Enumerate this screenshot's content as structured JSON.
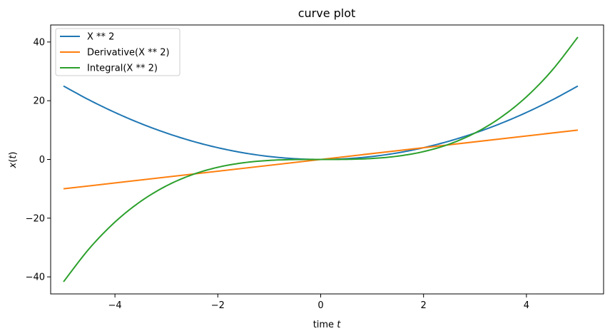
{
  "chart_data": {
    "type": "line",
    "title": "curve plot",
    "xlabel_prefix": "time ",
    "xlabel_var": "t",
    "ylabel_main": "x(",
    "ylabel_var": "t",
    "ylabel_close": ")",
    "xlim": [
      -5.25,
      5.5
    ],
    "ylim": [
      -45.8,
      45.8
    ],
    "x_ticks": [
      -4,
      -2,
      0,
      2,
      4
    ],
    "x_tick_labels": [
      "−4",
      "−2",
      "0",
      "2",
      "4"
    ],
    "y_ticks": [
      -40,
      -20,
      0,
      20,
      40
    ],
    "y_tick_labels": [
      "−40",
      "−20",
      "0",
      "20",
      "40"
    ],
    "grid": false,
    "legend_position": "top-left",
    "series": [
      {
        "name": "X ** 2",
        "color": "#1f77b4",
        "x": [
          -5,
          -4.5,
          -4,
          -3.5,
          -3,
          -2.5,
          -2,
          -1.5,
          -1,
          -0.5,
          0,
          0.5,
          1,
          1.5,
          2,
          2.5,
          3,
          3.5,
          4,
          4.5,
          5
        ],
        "y": [
          25,
          20.25,
          16,
          12.25,
          9,
          6.25,
          4,
          2.25,
          1,
          0.25,
          0,
          0.25,
          1,
          2.25,
          4,
          6.25,
          9,
          12.25,
          16,
          20.25,
          25
        ]
      },
      {
        "name": "Derivative(X ** 2)",
        "color": "#ff7f0e",
        "x": [
          -5,
          5
        ],
        "y": [
          -10,
          10
        ]
      },
      {
        "name": "Integral(X ** 2)",
        "color": "#2ca02c",
        "x": [
          -5,
          -4.5,
          -4,
          -3.5,
          -3,
          -2.5,
          -2,
          -1.5,
          -1,
          -0.5,
          0,
          0.5,
          1,
          1.5,
          2,
          2.5,
          3,
          3.5,
          4,
          4.5,
          5
        ],
        "y": [
          -41.67,
          -30.38,
          -21.33,
          -14.29,
          -9,
          -5.21,
          -2.67,
          -1.13,
          -0.33,
          -0.04,
          0,
          0.04,
          0.33,
          1.13,
          2.67,
          5.21,
          9,
          14.29,
          21.33,
          30.38,
          41.67
        ]
      }
    ]
  }
}
